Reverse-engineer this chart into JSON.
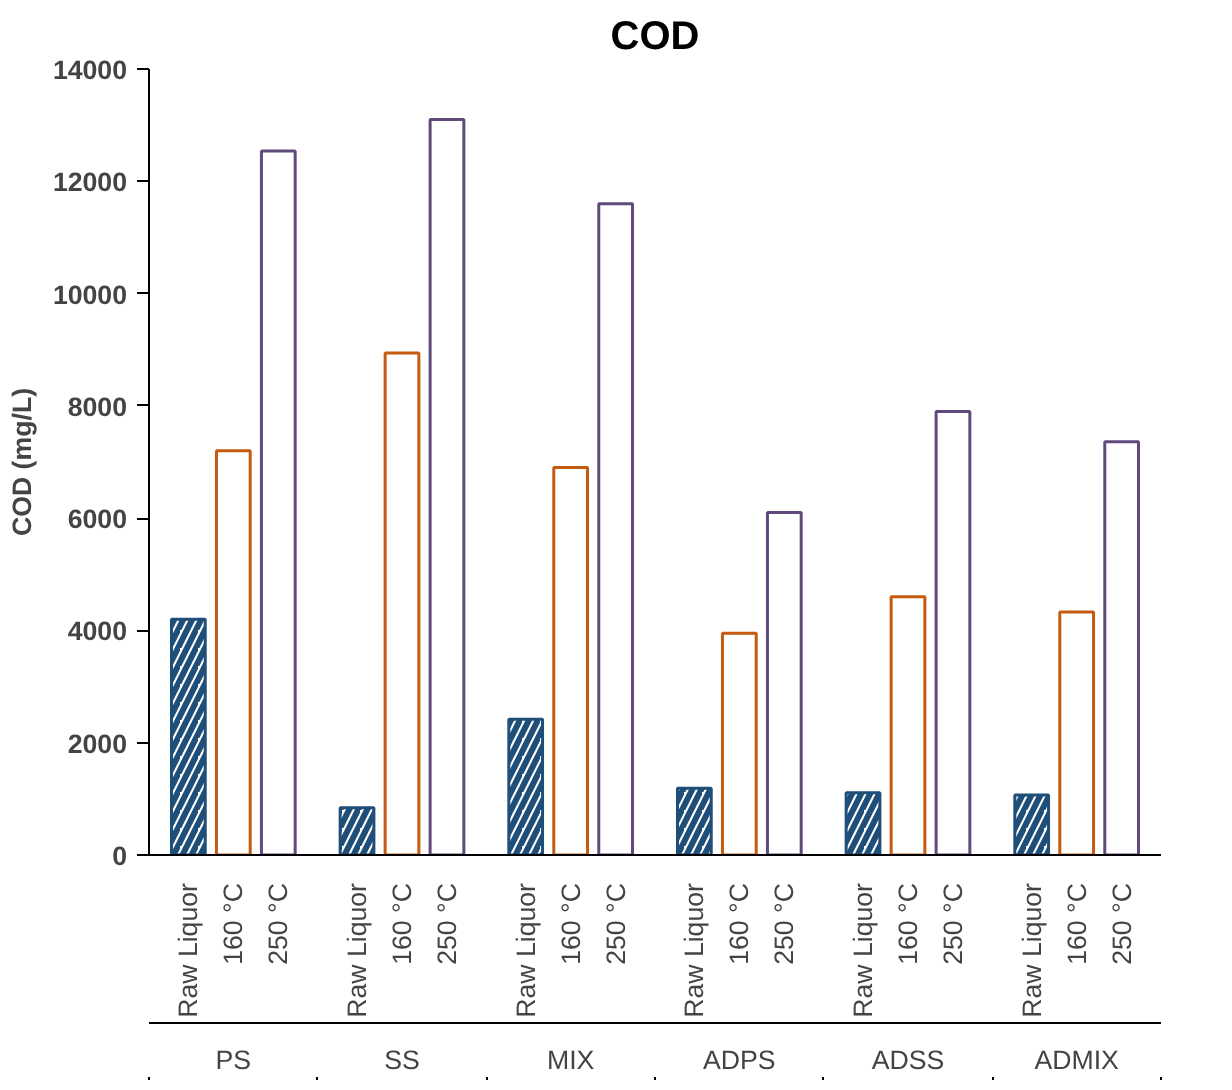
{
  "chart_data": {
    "type": "bar",
    "title": "COD",
    "ylabel": "COD (mg/L)",
    "categories": [
      "PS",
      "SS",
      "MIX",
      "ADPS",
      "ADSS",
      "ADMIX"
    ],
    "series": [
      {
        "name": "Raw Liquor",
        "color": "#1f4e79",
        "values": [
          4200,
          840,
          2420,
          1190,
          1110,
          1070
        ]
      },
      {
        "name": "160 °C",
        "color": "#c55a11",
        "values": [
          7200,
          8940,
          6900,
          3950,
          4600,
          4330
        ]
      },
      {
        "name": "250 °C",
        "color": "#604a7b",
        "values": [
          12540,
          13100,
          11600,
          6100,
          7900,
          7360
        ]
      }
    ],
    "ylim": [
      0,
      14000
    ],
    "yticks": [
      0,
      2000,
      4000,
      6000,
      8000,
      10000,
      12000,
      14000
    ],
    "grid": false
  }
}
